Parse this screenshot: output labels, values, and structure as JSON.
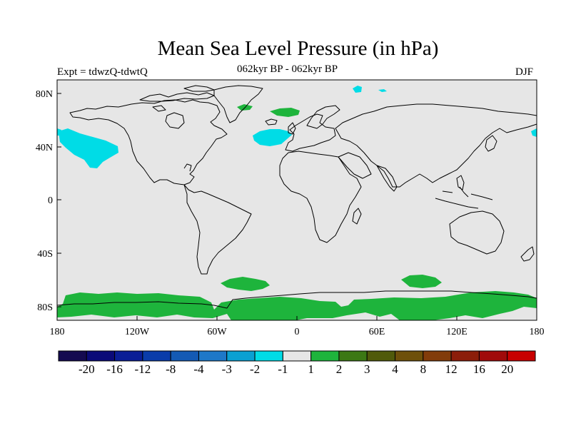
{
  "title": "Mean Sea Level Pressure (in hPa)",
  "left_label": "Expt = tdwzQ-tdwtQ",
  "center_label": "062kyr BP - 062kyr BP",
  "right_label": "DJF",
  "colors": {
    "land_fill": "#e6e6e6",
    "coast": "#000000",
    "cyan": "#00dce6",
    "green": "#1eb43c"
  },
  "axes": {
    "x_ticks": [
      "180",
      "120W",
      "60W",
      "0",
      "60E",
      "120E",
      "180"
    ],
    "y_ticks": [
      "80N",
      "40N",
      "0",
      "40S",
      "80S"
    ]
  },
  "colorbar": {
    "labels": [
      "-20",
      "-16",
      "-12",
      "-8",
      "-4",
      "-3",
      "-2",
      "-1",
      "1",
      "2",
      "3",
      "4",
      "8",
      "12",
      "16",
      "20"
    ],
    "colors": [
      "#140a50",
      "#0a0a78",
      "#0a1e96",
      "#0a3caa",
      "#145ab4",
      "#1e78c8",
      "#0aa0d2",
      "#00dce6",
      "#e6e6e6",
      "#1eb43c",
      "#3c7814",
      "#505a0a",
      "#6e500a",
      "#823c0a",
      "#8c1e0a",
      "#a00a0a",
      "#c80000"
    ]
  }
}
